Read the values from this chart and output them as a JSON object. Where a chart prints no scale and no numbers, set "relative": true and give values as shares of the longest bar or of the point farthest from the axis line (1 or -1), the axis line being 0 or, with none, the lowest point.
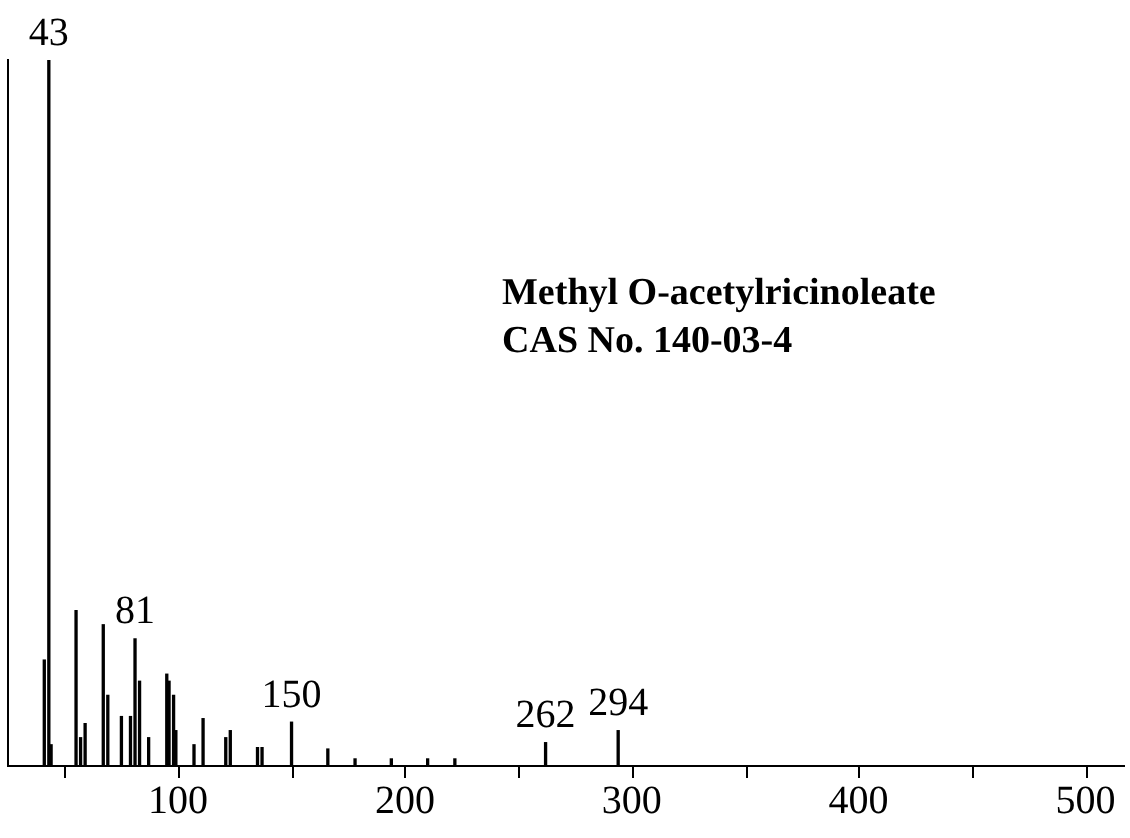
{
  "chart_data": {
    "type": "bar",
    "title": "Methyl O-acetylricinoleate",
    "subtitle": "CAS No. 140-03-4",
    "relative": true,
    "color": "#000000",
    "grid": false,
    "x": [
      41,
      43,
      44,
      55,
      57,
      59,
      67,
      69,
      75,
      79,
      81,
      83,
      87,
      95,
      96,
      98,
      99,
      107,
      111,
      121,
      123,
      135,
      137,
      150,
      166,
      178,
      194,
      210,
      222,
      262,
      294
    ],
    "values": [
      0.15,
      1,
      0.03,
      0.22,
      0.04,
      0.06,
      0.2,
      0.1,
      0.07,
      0.07,
      0.18,
      0.12,
      0.04,
      0.13,
      0.12,
      0.1,
      0.05,
      0.03,
      0.067,
      0.04,
      0.05,
      0.026,
      0.026,
      0.062,
      0.024,
      0.01,
      0.01,
      0.01,
      0.01,
      0.033,
      0.05
    ],
    "annotations": [
      {
        "text": "43",
        "x": 43,
        "y": 1
      },
      {
        "text": "81",
        "x": 81,
        "y": 0.18
      },
      {
        "text": "150",
        "x": 150,
        "y": 0.062
      },
      {
        "text": "262",
        "x": 262,
        "y": 0.033
      },
      {
        "text": "294",
        "x": 294,
        "y": 0.05
      }
    ],
    "xlim": [
      25,
      517
    ],
    "xticks": [
      {
        "value": 50,
        "label": null
      },
      100,
      {
        "value": 150,
        "label": null
      },
      200,
      {
        "value": 250,
        "label": null
      },
      300,
      {
        "value": 350,
        "label": null
      },
      400,
      {
        "value": 450,
        "label": null
      },
      500
    ]
  }
}
